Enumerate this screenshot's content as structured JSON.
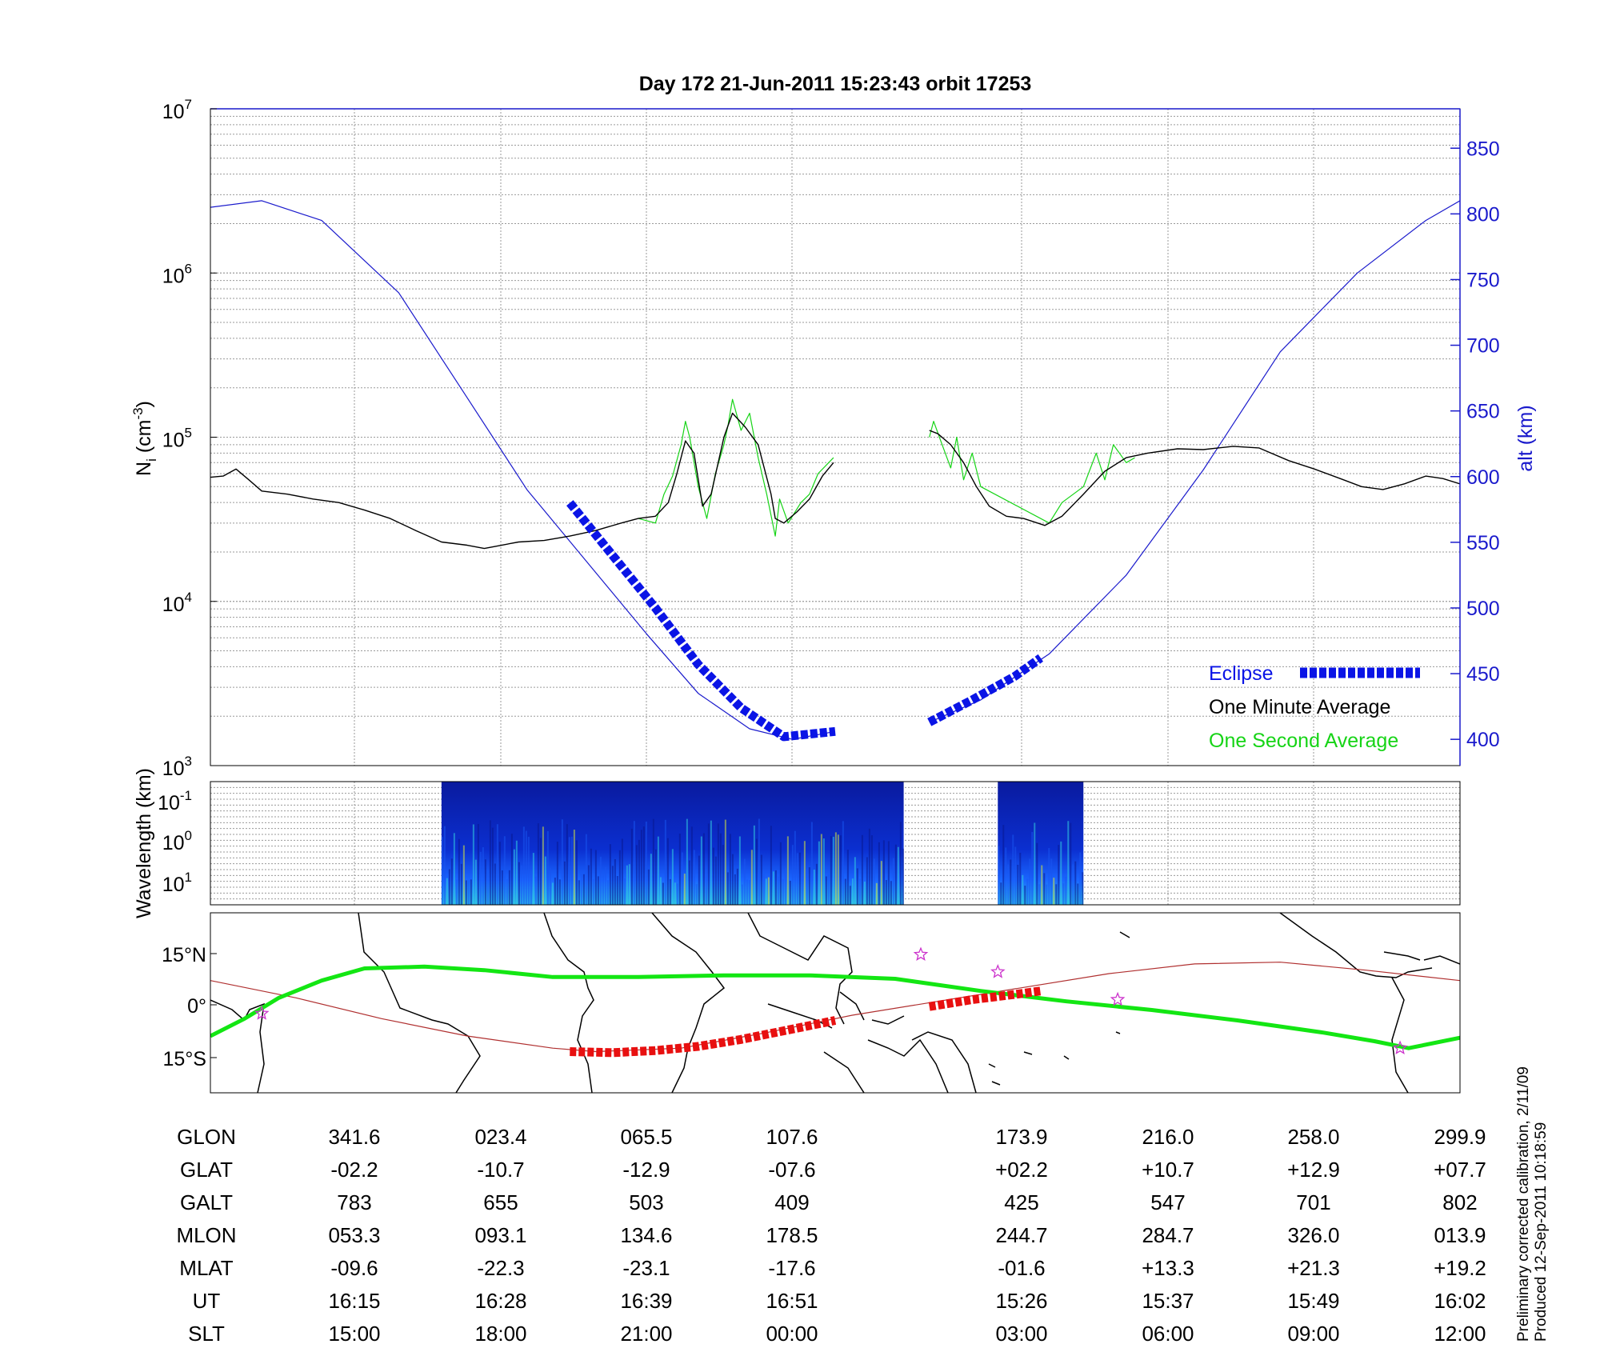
{
  "title": "Day 172  21-Jun-2011 15:23:43   orbit 17253",
  "footer": [
    "Preliminary corrected calibration, 2/11/09",
    "Produced 12-Sep-2011 10:18:59"
  ],
  "colors": {
    "eclipse": "#0a14e6",
    "one_minute": "#000000",
    "one_second": "#16d416",
    "altitude": "#1a1acc",
    "track": "#13e613",
    "eclipse_track": "#e81010",
    "star": "#cc33cc",
    "orbit_line": "#b03030",
    "axis_right": "#1a1acc"
  },
  "chart_data": [
    {
      "type": "line",
      "panel": "ion-density",
      "ylabel_parts": [
        "N",
        "i",
        " (cm",
        "-3",
        ")"
      ],
      "y2label": "alt (km)",
      "yscale": "log",
      "ylim": [
        1000,
        10000000
      ],
      "y_ticks": [
        {
          "base": "10",
          "exp": "3"
        },
        {
          "base": "10",
          "exp": "4"
        },
        {
          "base": "10",
          "exp": "5"
        },
        {
          "base": "10",
          "exp": "6"
        },
        {
          "base": "10",
          "exp": "7"
        }
      ],
      "y2lim": [
        380,
        880
      ],
      "y2_ticks": [
        "400",
        "450",
        "500",
        "550",
        "600",
        "650",
        "700",
        "750",
        "800",
        "850"
      ],
      "grid": true,
      "legend_position": "bottom-right",
      "legend": [
        {
          "label": "Eclipse",
          "color": "#0a14e6",
          "style": "dashed-thick"
        },
        {
          "label": "One Minute Average",
          "color": "#000000",
          "style": "line"
        },
        {
          "label": "One Second Average",
          "color": "#16d416",
          "style": "line"
        }
      ],
      "series": [
        {
          "name": "One Minute Average",
          "segments": [
            [
              [
                0,
                57000
              ],
              [
                0.15,
                58000
              ],
              [
                0.3,
                64000
              ],
              [
                0.45,
                55000
              ],
              [
                0.6,
                47000
              ],
              [
                0.9,
                45000
              ],
              [
                1.2,
                42000
              ],
              [
                1.5,
                40000
              ],
              [
                1.8,
                36000
              ],
              [
                2.1,
                32000
              ],
              [
                2.4,
                27000
              ],
              [
                2.7,
                23000
              ],
              [
                3.0,
                22000
              ],
              [
                3.2,
                21000
              ],
              [
                3.4,
                22000
              ],
              [
                3.6,
                23000
              ],
              [
                3.9,
                23500
              ],
              [
                4.2,
                25000
              ],
              [
                4.5,
                27000
              ],
              [
                4.8,
                30000
              ],
              [
                5.0,
                32000
              ],
              [
                5.2,
                33000
              ],
              [
                5.35,
                40000
              ],
              [
                5.45,
                60000
              ],
              [
                5.55,
                95000
              ],
              [
                5.65,
                80000
              ],
              [
                5.75,
                38000
              ],
              [
                5.85,
                45000
              ],
              [
                6.0,
                100000
              ],
              [
                6.1,
                140000
              ],
              [
                6.25,
                115000
              ],
              [
                6.4,
                90000
              ],
              [
                6.55,
                45000
              ],
              [
                6.6,
                32000
              ],
              [
                6.7,
                30000
              ],
              [
                6.85,
                35000
              ],
              [
                7.0,
                42000
              ],
              [
                7.15,
                58000
              ],
              [
                7.28,
                70000
              ]
            ],
            [
              [
                8.4,
                110000
              ],
              [
                8.5,
                105000
              ],
              [
                8.65,
                90000
              ],
              [
                8.8,
                70000
              ],
              [
                8.95,
                50000
              ],
              [
                9.1,
                38000
              ],
              [
                9.3,
                33000
              ],
              [
                9.5,
                32000
              ],
              [
                9.75,
                29000
              ],
              [
                9.95,
                33000
              ],
              [
                10.2,
                45000
              ],
              [
                10.45,
                62000
              ],
              [
                10.7,
                75000
              ],
              [
                10.95,
                80000
              ],
              [
                11.3,
                85000
              ],
              [
                11.6,
                84000
              ],
              [
                11.95,
                88000
              ],
              [
                12.25,
                86000
              ],
              [
                12.6,
                72000
              ],
              [
                12.9,
                64000
              ],
              [
                13.2,
                56000
              ],
              [
                13.45,
                50000
              ],
              [
                13.7,
                48000
              ],
              [
                13.95,
                52000
              ],
              [
                14.2,
                58000
              ],
              [
                14.4,
                56000
              ],
              [
                14.6,
                52000
              ]
            ]
          ]
        },
        {
          "name": "One Second Average",
          "segments": [
            [
              [
                5.0,
                32000
              ],
              [
                5.2,
                30000
              ],
              [
                5.3,
                45000
              ],
              [
                5.4,
                58000
              ],
              [
                5.5,
                90000
              ],
              [
                5.55,
                125000
              ],
              [
                5.6,
                100000
              ],
              [
                5.7,
                50000
              ],
              [
                5.8,
                32000
              ],
              [
                5.9,
                60000
              ],
              [
                6.0,
                90000
              ],
              [
                6.05,
                120000
              ],
              [
                6.1,
                170000
              ],
              [
                6.2,
                110000
              ],
              [
                6.3,
                140000
              ],
              [
                6.4,
                75000
              ],
              [
                6.5,
                45000
              ],
              [
                6.6,
                25000
              ],
              [
                6.65,
                42000
              ],
              [
                6.75,
                30000
              ],
              [
                6.9,
                40000
              ],
              [
                7.0,
                45000
              ],
              [
                7.1,
                60000
              ],
              [
                7.28,
                75000
              ]
            ],
            [
              [
                8.4,
                100000
              ],
              [
                8.45,
                125000
              ],
              [
                8.55,
                90000
              ],
              [
                8.65,
                65000
              ],
              [
                8.72,
                100000
              ],
              [
                8.8,
                55000
              ],
              [
                8.9,
                80000
              ],
              [
                9.0,
                50000
              ],
              [
                9.8,
                30000
              ],
              [
                9.95,
                40000
              ],
              [
                10.2,
                50000
              ],
              [
                10.35,
                80000
              ],
              [
                10.45,
                55000
              ],
              [
                10.55,
                90000
              ],
              [
                10.7,
                70000
              ],
              [
                10.8,
                75000
              ]
            ]
          ]
        },
        {
          "name": "Altitude",
          "axis": "right",
          "segments": [
            [
              [
                0,
                805
              ],
              [
                0.6,
                810
              ],
              [
                1.3,
                795
              ],
              [
                2.2,
                740
              ],
              [
                3.0,
                660
              ],
              [
                3.7,
                590
              ],
              [
                4.4,
                535
              ],
              [
                5.1,
                480
              ],
              [
                5.7,
                435
              ],
              [
                6.3,
                408
              ],
              [
                6.8,
                400
              ],
              [
                7.3,
                406
              ]
            ],
            [
              [
                8.4,
                413
              ],
              [
                9.0,
                430
              ],
              [
                9.8,
                465
              ],
              [
                10.7,
                525
              ],
              [
                11.6,
                605
              ],
              [
                12.5,
                695
              ],
              [
                13.4,
                755
              ],
              [
                14.2,
                795
              ],
              [
                14.6,
                810
              ]
            ]
          ]
        },
        {
          "name": "Eclipse",
          "axis": "right",
          "segments": [
            [
              [
                4.2,
                580
              ],
              [
                4.7,
                540
              ],
              [
                5.2,
                500
              ],
              [
                5.7,
                457
              ],
              [
                6.2,
                424
              ],
              [
                6.7,
                402
              ],
              [
                7.3,
                406
              ]
            ],
            [
              [
                8.4,
                413
              ],
              [
                8.9,
                430
              ],
              [
                9.4,
                448
              ],
              [
                9.7,
                462
              ]
            ]
          ]
        }
      ]
    },
    {
      "type": "heatmap",
      "panel": "wavelength-spectrogram",
      "ylabel": "Wavelength (km)",
      "y_ticks": [
        {
          "base": "10",
          "exp": "-1"
        },
        {
          "base": "10",
          "exp": "0"
        },
        {
          "base": "10",
          "exp": "1"
        }
      ],
      "active_segments": [
        [
          2.7,
          8.1
        ],
        [
          9.2,
          10.2
        ]
      ]
    },
    {
      "type": "map",
      "panel": "ground-track",
      "y_ticks": [
        {
          "value": "15",
          "unit": "°N"
        },
        {
          "value": "0",
          "unit": "°"
        },
        {
          "value": "15",
          "unit": "°S"
        }
      ],
      "track_lat": [
        [
          0,
          -9
        ],
        [
          0.4,
          -4
        ],
        [
          0.8,
          2
        ],
        [
          1.3,
          7
        ],
        [
          1.8,
          10.5
        ],
        [
          2.5,
          11
        ],
        [
          3.2,
          10
        ],
        [
          4.0,
          8
        ],
        [
          5.0,
          8
        ],
        [
          6.0,
          8.5
        ],
        [
          7.0,
          8.5
        ],
        [
          8.0,
          7.5
        ],
        [
          9.0,
          4
        ],
        [
          10.0,
          1
        ],
        [
          11.0,
          -1.5
        ],
        [
          12.0,
          -4.5
        ],
        [
          13.0,
          -8
        ],
        [
          13.6,
          -10.5
        ],
        [
          14.0,
          -12.5
        ],
        [
          14.6,
          -9.5
        ]
      ],
      "orbit_lat": [
        [
          0,
          7
        ],
        [
          1.0,
          2
        ],
        [
          2.0,
          -4
        ],
        [
          3.0,
          -9
        ],
        [
          4.0,
          -12.5
        ],
        [
          4.5,
          -13.5
        ],
        [
          5.5,
          -12.5
        ],
        [
          6.5,
          -8
        ],
        [
          7.5,
          -3
        ],
        [
          8.5,
          1
        ],
        [
          9.5,
          5
        ],
        [
          10.5,
          9
        ],
        [
          11.5,
          11.8
        ],
        [
          12.5,
          12.3
        ],
        [
          13.5,
          10
        ],
        [
          14.6,
          7
        ]
      ],
      "eclipse_lat": [
        [
          [
            4.2,
            -13.5
          ],
          [
            4.7,
            -13.8
          ],
          [
            5.2,
            -13.2
          ],
          [
            5.7,
            -12
          ],
          [
            6.2,
            -10
          ],
          [
            6.7,
            -7.5
          ],
          [
            7.2,
            -5
          ],
          [
            7.3,
            -4.5
          ]
        ],
        [
          [
            8.4,
            -0.5
          ],
          [
            8.9,
            1.5
          ],
          [
            9.4,
            3
          ],
          [
            9.7,
            4
          ]
        ]
      ],
      "stars": [
        [
          0.6,
          -2.5
        ],
        [
          8.3,
          14.5
        ],
        [
          9.2,
          9.5
        ],
        [
          10.6,
          1.5
        ],
        [
          13.9,
          -12.5
        ]
      ]
    }
  ],
  "table": {
    "row_labels": [
      "GLON",
      "GLAT",
      "GALT",
      "MLON",
      "MLAT",
      "UT",
      "SLT"
    ],
    "columns": [
      [
        "341.6",
        "-02.2",
        "783",
        "053.3",
        "-09.6",
        "16:15",
        "15:00"
      ],
      [
        "023.4",
        "-10.7",
        "655",
        "093.1",
        "-22.3",
        "16:28",
        "18:00"
      ],
      [
        "065.5",
        "-12.9",
        "503",
        "134.6",
        "-23.1",
        "16:39",
        "21:00"
      ],
      [
        "107.6",
        "-07.6",
        "409",
        "178.5",
        "-17.6",
        "16:51",
        "00:00"
      ],
      [
        "173.9",
        "+02.2",
        "425",
        "244.7",
        "-01.6",
        "15:26",
        "03:00"
      ],
      [
        "216.0",
        "+10.7",
        "547",
        "284.7",
        "+13.3",
        "15:37",
        "06:00"
      ],
      [
        "258.0",
        "+12.9",
        "701",
        "326.0",
        "+21.3",
        "15:49",
        "09:00"
      ],
      [
        "299.9",
        "+07.7",
        "802",
        "013.9",
        "+19.2",
        "16:02",
        "12:00"
      ]
    ]
  }
}
